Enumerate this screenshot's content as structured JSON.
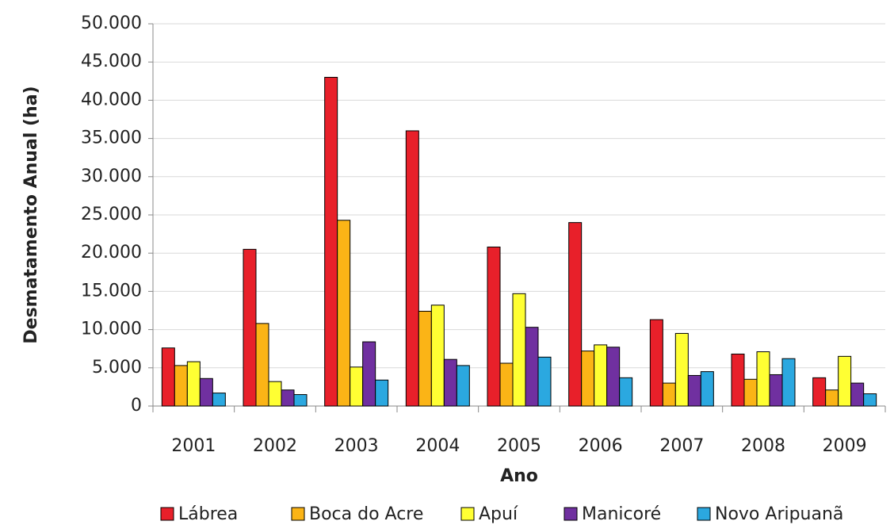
{
  "chart_data": {
    "type": "bar",
    "xlabel": "Ano",
    "ylabel": "Desmatamento Anual (ha)",
    "categories": [
      "2001",
      "2002",
      "2003",
      "2004",
      "2005",
      "2006",
      "2007",
      "2008",
      "2009"
    ],
    "series": [
      {
        "name": "Lábrea",
        "color": "#e8202a",
        "values": [
          7600,
          20500,
          43000,
          36000,
          20800,
          24000,
          11300,
          6800,
          3700
        ]
      },
      {
        "name": "Boca do Acre",
        "color": "#fbb416",
        "values": [
          5300,
          10800,
          24300,
          12400,
          5600,
          7200,
          3000,
          3500,
          2100
        ]
      },
      {
        "name": "Apuí",
        "color": "#ffff33",
        "values": [
          5800,
          3200,
          5100,
          13200,
          14700,
          8000,
          9500,
          7100,
          6500
        ]
      },
      {
        "name": "Manicoré",
        "color": "#7030a0",
        "values": [
          3600,
          2100,
          8400,
          6100,
          10300,
          7700,
          4000,
          4100,
          3000
        ]
      },
      {
        "name": "Novo Aripuanã",
        "color": "#2ba8e0",
        "values": [
          1700,
          1500,
          3400,
          5300,
          6400,
          3700,
          4500,
          6200,
          1600
        ]
      }
    ],
    "ylim": [
      0,
      50000
    ],
    "yticks": [
      0,
      {
        "value": 5000,
        "label": "5.000"
      },
      {
        "value": 10000,
        "label": "10.000"
      },
      {
        "value": 15000,
        "label": "15.000"
      },
      {
        "value": 20000,
        "label": "20.000"
      },
      {
        "value": 25000,
        "label": "25.000"
      },
      {
        "value": 30000,
        "label": "30.000"
      },
      {
        "value": 35000,
        "label": "35.000"
      },
      {
        "value": 40000,
        "label": "40.000"
      },
      {
        "value": 45000,
        "label": "45.000"
      },
      {
        "value": 50000,
        "label": "50.000"
      }
    ],
    "grid": true,
    "legend": "bottom"
  }
}
